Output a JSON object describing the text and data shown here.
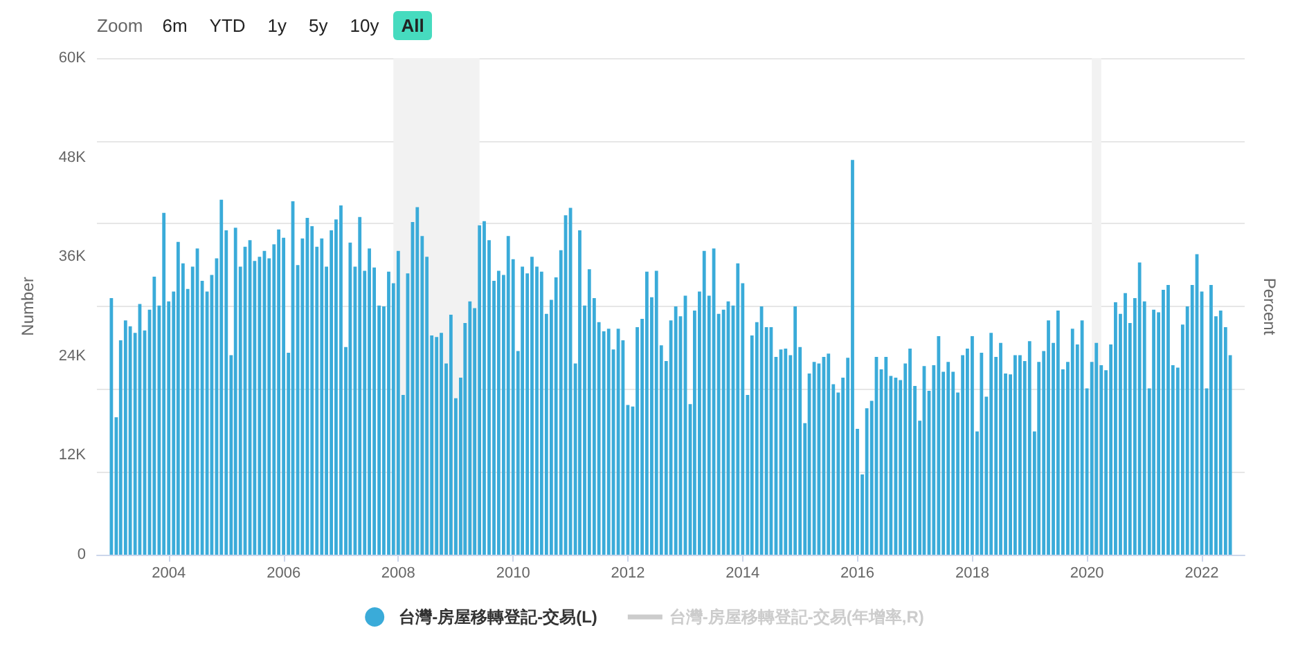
{
  "chart_data": {
    "type": "bar",
    "ylabel": "Number",
    "y2label": "Percent",
    "annotations": [
      "Zoom",
      "6m",
      "YTD",
      "1y",
      "5y",
      "10y",
      "All"
    ],
    "x": [
      "2003-01",
      "2003-02",
      "2003-03",
      "2003-04",
      "2003-05",
      "2003-06",
      "2003-07",
      "2003-08",
      "2003-09",
      "2003-10",
      "2003-11",
      "2003-12",
      "2004-01",
      "2004-02",
      "2004-03",
      "2004-04",
      "2004-05",
      "2004-06",
      "2004-07",
      "2004-08",
      "2004-09",
      "2004-10",
      "2004-11",
      "2004-12",
      "2005-01",
      "2005-02",
      "2005-03",
      "2005-04",
      "2005-05",
      "2005-06",
      "2005-07",
      "2005-08",
      "2005-09",
      "2005-10",
      "2005-11",
      "2005-12",
      "2006-01",
      "2006-02",
      "2006-03",
      "2006-04",
      "2006-05",
      "2006-06",
      "2006-07",
      "2006-08",
      "2006-09",
      "2006-10",
      "2006-11",
      "2006-12",
      "2007-01",
      "2007-02",
      "2007-03",
      "2007-04",
      "2007-05",
      "2007-06",
      "2007-07",
      "2007-08",
      "2007-09",
      "2007-10",
      "2007-11",
      "2007-12",
      "2008-01",
      "2008-02",
      "2008-03",
      "2008-04",
      "2008-05",
      "2008-06",
      "2008-07",
      "2008-08",
      "2008-09",
      "2008-10",
      "2008-11",
      "2008-12",
      "2009-01",
      "2009-02",
      "2009-03",
      "2009-04",
      "2009-05",
      "2009-06",
      "2009-07",
      "2009-08",
      "2009-09",
      "2009-10",
      "2009-11",
      "2009-12",
      "2010-01",
      "2010-02",
      "2010-03",
      "2010-04",
      "2010-05",
      "2010-06",
      "2010-07",
      "2010-08",
      "2010-09",
      "2010-10",
      "2010-11",
      "2010-12",
      "2011-01",
      "2011-02",
      "2011-03",
      "2011-04",
      "2011-05",
      "2011-06",
      "2011-07",
      "2011-08",
      "2011-09",
      "2011-10",
      "2011-11",
      "2011-12",
      "2012-01",
      "2012-02",
      "2012-03",
      "2012-04",
      "2012-05",
      "2012-06",
      "2012-07",
      "2012-08",
      "2012-09",
      "2012-10",
      "2012-11",
      "2012-12",
      "2013-01",
      "2013-02",
      "2013-03",
      "2013-04",
      "2013-05",
      "2013-06",
      "2013-07",
      "2013-08",
      "2013-09",
      "2013-10",
      "2013-11",
      "2013-12",
      "2014-01",
      "2014-02",
      "2014-03",
      "2014-04",
      "2014-05",
      "2014-06",
      "2014-07",
      "2014-08",
      "2014-09",
      "2014-10",
      "2014-11",
      "2014-12",
      "2015-01",
      "2015-02",
      "2015-03",
      "2015-04",
      "2015-05",
      "2015-06",
      "2015-07",
      "2015-08",
      "2015-09",
      "2015-10",
      "2015-11",
      "2015-12",
      "2016-01",
      "2016-02",
      "2016-03",
      "2016-04",
      "2016-05",
      "2016-06",
      "2016-07",
      "2016-08",
      "2016-09",
      "2016-10",
      "2016-11",
      "2016-12",
      "2017-01",
      "2017-02",
      "2017-03",
      "2017-04",
      "2017-05",
      "2017-06",
      "2017-07",
      "2017-08",
      "2017-09",
      "2017-10",
      "2017-11",
      "2017-12",
      "2018-01",
      "2018-02",
      "2018-03",
      "2018-04",
      "2018-05",
      "2018-06",
      "2018-07",
      "2018-08",
      "2018-09",
      "2018-10",
      "2018-11",
      "2018-12",
      "2019-01",
      "2019-02",
      "2019-03",
      "2019-04",
      "2019-05",
      "2019-06",
      "2019-07",
      "2019-08",
      "2019-09",
      "2019-10",
      "2019-11",
      "2019-12",
      "2020-01",
      "2020-02",
      "2020-03",
      "2020-04",
      "2020-05",
      "2020-06",
      "2020-07",
      "2020-08",
      "2020-09",
      "2020-10",
      "2020-11",
      "2020-12",
      "2021-01",
      "2021-02",
      "2021-03",
      "2021-04",
      "2021-05",
      "2021-06",
      "2021-07",
      "2021-08",
      "2021-09",
      "2021-10",
      "2021-11",
      "2021-12",
      "2022-01",
      "2022-02",
      "2022-03",
      "2022-04",
      "2022-05",
      "2022-06",
      "2022-07"
    ],
    "series": [
      {
        "name": "台灣-房屋移轉登記-交易(L)",
        "color": "#3aabd9",
        "values": [
          31000,
          16600,
          25900,
          28300,
          27600,
          26800,
          30300,
          27100,
          29600,
          33600,
          30100,
          41300,
          30600,
          31800,
          37800,
          35200,
          32100,
          34800,
          37000,
          33100,
          31800,
          33800,
          35800,
          42900,
          39200,
          24100,
          39500,
          34800,
          37200,
          38000,
          35500,
          36000,
          36700,
          35800,
          37500,
          39300,
          38300,
          24400,
          42700,
          35000,
          38200,
          40700,
          39700,
          37200,
          38200,
          34800,
          39200,
          40500,
          42200,
          25100,
          37700,
          34800,
          40800,
          34300,
          37000,
          34700,
          30100,
          30000,
          34200,
          32800,
          36700,
          19300,
          34000,
          40200,
          42000,
          38500,
          36000,
          26500,
          26300,
          26800,
          23100,
          29000,
          18900,
          21400,
          28000,
          30600,
          29800,
          39800,
          40300,
          38000,
          33100,
          34300,
          33800,
          38500,
          35700,
          24600,
          34800,
          34000,
          36000,
          34800,
          34200,
          29100,
          30800,
          33500,
          36800,
          41000,
          41900,
          23100,
          39200,
          30100,
          34500,
          31000,
          28100,
          27000,
          27300,
          24800,
          27300,
          25900,
          18100,
          17900,
          27500,
          28500,
          34200,
          31100,
          34300,
          25300,
          23400,
          28300,
          30000,
          28800,
          31300,
          18200,
          29500,
          31800,
          36700,
          31300,
          37000,
          29100,
          29600,
          30600,
          30100,
          35200,
          32800,
          19300,
          26500,
          28100,
          30000,
          27500,
          27500,
          23900,
          24800,
          24900,
          24100,
          30000,
          25100,
          15900,
          21900,
          23300,
          23100,
          23900,
          24300,
          20600,
          19600,
          21400,
          23800,
          47700,
          15200,
          9700,
          17700,
          18600,
          23900,
          22400,
          23900,
          21600,
          21400,
          21100,
          23100,
          24900,
          20400,
          16200,
          22800,
          19800,
          22900,
          26400,
          22100,
          23300,
          22100,
          19600,
          24100,
          24900,
          26400,
          14900,
          24400,
          19100,
          26800,
          23900,
          25600,
          21900,
          21800,
          24100,
          24100,
          23400,
          25800,
          14900,
          23300,
          24600,
          28300,
          25600,
          29500,
          22400,
          23300,
          27300,
          25400,
          28300,
          20100,
          23300,
          25600,
          22900,
          22300,
          25400,
          30500,
          29100,
          31600,
          28000,
          31000,
          35300,
          30600,
          20100,
          29600,
          29300,
          32000,
          32600,
          22900,
          22600,
          27800,
          30000,
          32600,
          36300,
          31800,
          20100,
          32600,
          28800,
          29500,
          27500,
          24100
        ]
      },
      {
        "name": "台灣-房屋移轉登記-交易(年增率,R)",
        "type": "line",
        "axis": "y2",
        "values": [
          null,
          null,
          null,
          null,
          null,
          null,
          null,
          null,
          null,
          null,
          null,
          null,
          null,
          null,
          null,
          null,
          null,
          null,
          null,
          null,
          null,
          null,
          null,
          null,
          null,
          null,
          null,
          null,
          null,
          null,
          null,
          null,
          null,
          null,
          null,
          null,
          null,
          null,
          null,
          null,
          null,
          null,
          null,
          null,
          null,
          null,
          null,
          null,
          null,
          null,
          null,
          null,
          null,
          null,
          null,
          null,
          null,
          null,
          null,
          null,
          null,
          null,
          null,
          null,
          null,
          null,
          null,
          null,
          null,
          null,
          null,
          null,
          null,
          null,
          null,
          null,
          null,
          null,
          null,
          null,
          null,
          null,
          null,
          null,
          null,
          null,
          null,
          null,
          null,
          null,
          null,
          null,
          null,
          null,
          null,
          null,
          null,
          null,
          null,
          null,
          null,
          null,
          null,
          null,
          null,
          null,
          null,
          null,
          null,
          null,
          null,
          null,
          null,
          null,
          null,
          null,
          null,
          null,
          null,
          null,
          null,
          null,
          null,
          null,
          null,
          null,
          null,
          null,
          null,
          null,
          null,
          null,
          null,
          null,
          null,
          null,
          null,
          null,
          null,
          null,
          null,
          null,
          null,
          null,
          null,
          null,
          null,
          null,
          null,
          null,
          null,
          null,
          null,
          null,
          null,
          null,
          null,
          null,
          null,
          null,
          null,
          null,
          null,
          null,
          null,
          null,
          null,
          null,
          null,
          null,
          null,
          null,
          null,
          null,
          null,
          null,
          null,
          null,
          null,
          null,
          null,
          null,
          null,
          null,
          null,
          null,
          null,
          null,
          null,
          null,
          null,
          null,
          null,
          null,
          null,
          null,
          null,
          null,
          null,
          null,
          null,
          null,
          null,
          null,
          null,
          null,
          null,
          null,
          null,
          null,
          null,
          null,
          null,
          null,
          null,
          null,
          null,
          null,
          null,
          null,
          null,
          null,
          null,
          null,
          null,
          null,
          null,
          null,
          null,
          null,
          null,
          null,
          null,
          null,
          null
        ]
      }
    ],
    "xlim": [
      "2002-10",
      "2022-10"
    ],
    "xticks": [
      "2004",
      "2006",
      "2008",
      "2010",
      "2012",
      "2014",
      "2016",
      "2018",
      "2020",
      "2022"
    ],
    "ylim": [
      0,
      60000
    ],
    "yticks": [
      {
        "value": 0,
        "label": "0"
      },
      {
        "value": 12000,
        "label": "12K"
      },
      {
        "value": 24000,
        "label": "24K"
      },
      {
        "value": 36000,
        "label": "36K"
      },
      {
        "value": 48000,
        "label": "48K"
      },
      {
        "value": 60000,
        "label": "60K"
      }
    ],
    "bands": [
      {
        "axis": "x",
        "from": "2007-12",
        "to": "2009-06",
        "color": "#f2f2f2"
      },
      {
        "axis": "x",
        "from": "2020-02",
        "to": "2020-04",
        "color": "#f2f2f2"
      }
    ],
    "grid": "y",
    "legend": "bottom"
  }
}
